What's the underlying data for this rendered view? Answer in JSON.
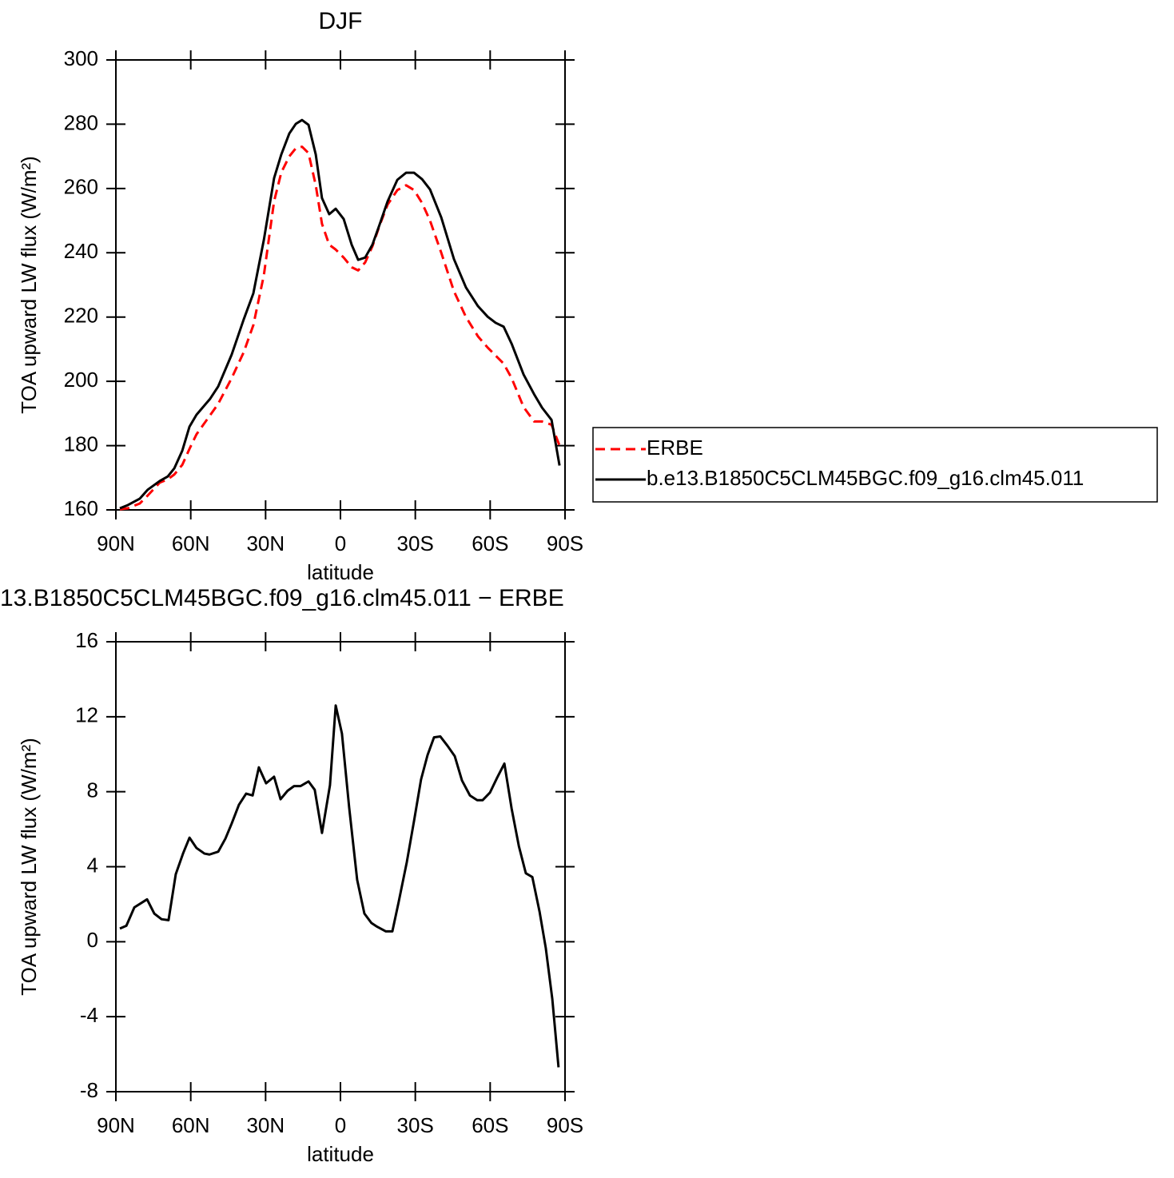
{
  "chart_data": [
    {
      "type": "line",
      "title": "DJF",
      "xlabel": "latitude",
      "ylabel": "TOA upward LW flux (W/m²)",
      "x": [
        88.4,
        85.2,
        80.4,
        77.2,
        72.4,
        69.2,
        66.6,
        63.4,
        60.5,
        57.7,
        52.2,
        49.0,
        43.6,
        38.8,
        34.9,
        30.7,
        26.6,
        23.7,
        20.5,
        17.9,
        15.4,
        12.8,
        9.9,
        7.4,
        4.5,
        1.9,
        -1.3,
        -4.5,
        -7.1,
        -9.9,
        -12.8,
        -15.7,
        -18.9,
        -22.8,
        -26.3,
        -29.5,
        -32.7,
        -35.9,
        -40.4,
        -45.5,
        -50.3,
        -55.1,
        -59.0,
        -62.2,
        -65.4,
        -68.6,
        -73.4,
        -77.6,
        -80.8,
        -84.6,
        -87.8
      ],
      "series": [
        {
          "name": "ERBE",
          "color": "#ff0000",
          "style": "dashed",
          "values": [
            160.2,
            160.5,
            162,
            164.5,
            168.5,
            169.5,
            171,
            174,
            179,
            183.5,
            189.5,
            193,
            201,
            209,
            217.5,
            233,
            256,
            265,
            270,
            272.5,
            273,
            271,
            261,
            249,
            242.5,
            241,
            238.5,
            235.5,
            234.5,
            237,
            242,
            248.5,
            255,
            259.5,
            261,
            259.5,
            255.5,
            250,
            240,
            228,
            220,
            214,
            210.5,
            208,
            205.5,
            201,
            192,
            187.5,
            187.5,
            186.5,
            180
          ]
        },
        {
          "name": "b.e13.B1850C5CLM45BGC.f09_g16.clm45.011",
          "color": "#000000",
          "style": "solid",
          "values": [
            160.5,
            161.5,
            163.5,
            166.3,
            169,
            170.4,
            172.9,
            178.4,
            185.9,
            189.6,
            194.6,
            198.4,
            208.3,
            219.2,
            227.4,
            244,
            263.2,
            270.6,
            277.1,
            280.1,
            281.3,
            279.8,
            270.6,
            257,
            252,
            253.7,
            250.5,
            242.5,
            237.8,
            238.5,
            242.5,
            248.8,
            256,
            262.7,
            264.9,
            264.9,
            262.9,
            259.7,
            251,
            238,
            229.2,
            223.4,
            220.1,
            218.2,
            217,
            211.7,
            202.1,
            196,
            191.8,
            188,
            173.8
          ]
        }
      ],
      "xlim": [
        90,
        -90
      ],
      "xticks": [
        {
          "value": 90,
          "label": "90N"
        },
        {
          "value": 60,
          "label": "60N"
        },
        {
          "value": 30,
          "label": "30N"
        },
        0,
        {
          "value": -30,
          "label": "30S"
        },
        {
          "value": -60,
          "label": "60S"
        },
        {
          "value": -90,
          "label": "90S"
        }
      ],
      "ylim": [
        160,
        300
      ],
      "yticks": [
        160,
        180,
        200,
        220,
        240,
        260,
        280,
        300
      ],
      "legend": "right"
    },
    {
      "type": "line",
      "title": "13.B1850C5CLM45BGC.f09_g16.clm45.011 − ERBE",
      "xlabel": "latitude",
      "ylabel": "TOA upward LW flux (W/m²)",
      "x": [
        88.4,
        85.8,
        82.6,
        77.5,
        74.6,
        71.7,
        68.9,
        66.0,
        63.1,
        60.5,
        57.7,
        54.5,
        52.5,
        49.0,
        46.1,
        43.6,
        40.7,
        37.8,
        35.2,
        32.7,
        29.8,
        26.6,
        24.0,
        21.2,
        18.6,
        16.0,
        12.8,
        10.3,
        7.4,
        4.2,
        1.9,
        -0.6,
        -3.5,
        -6.7,
        -9.6,
        -12.4,
        -14.7,
        -18.2,
        -20.8,
        -23.3,
        -26.6,
        -29.5,
        -32.3,
        -34.9,
        -37.5,
        -40.0,
        -42.9,
        -45.8,
        -48.7,
        -51.9,
        -54.8,
        -57.0,
        -59.9,
        -62.8,
        -65.7,
        -68.6,
        -71.5,
        -74.3,
        -76.9,
        -79.8,
        -82.3,
        -84.9,
        -87.4
      ],
      "values": [
        0.7,
        0.85,
        1.83,
        2.26,
        1.5,
        1.2,
        1.15,
        3.6,
        4.7,
        5.55,
        5.0,
        4.7,
        4.65,
        4.8,
        5.5,
        6.3,
        7.3,
        7.9,
        7.8,
        9.3,
        8.45,
        8.8,
        7.6,
        8.05,
        8.3,
        8.3,
        8.55,
        8.1,
        5.8,
        8.35,
        12.6,
        11.1,
        7.15,
        3.3,
        1.5,
        1.0,
        0.8,
        0.55,
        0.55,
        2.1,
        4.25,
        6.45,
        8.65,
        9.95,
        10.9,
        10.95,
        10.45,
        9.9,
        8.6,
        7.8,
        7.55,
        7.55,
        7.95,
        8.75,
        9.5,
        7.1,
        5.1,
        3.65,
        3.45,
        1.6,
        -0.35,
        -3.05,
        -6.7
      ],
      "color": "#000000",
      "style": "solid",
      "xlim": [
        90,
        -90
      ],
      "xticks": [
        {
          "value": 90,
          "label": "90N"
        },
        {
          "value": 60,
          "label": "60N"
        },
        {
          "value": 30,
          "label": "30N"
        },
        0,
        {
          "value": -30,
          "label": "30S"
        },
        {
          "value": -60,
          "label": "60S"
        },
        {
          "value": -90,
          "label": "90S"
        }
      ],
      "ylim": [
        -8,
        16
      ],
      "yticks": [
        -8,
        -4,
        0,
        4,
        8,
        12,
        16
      ]
    }
  ]
}
